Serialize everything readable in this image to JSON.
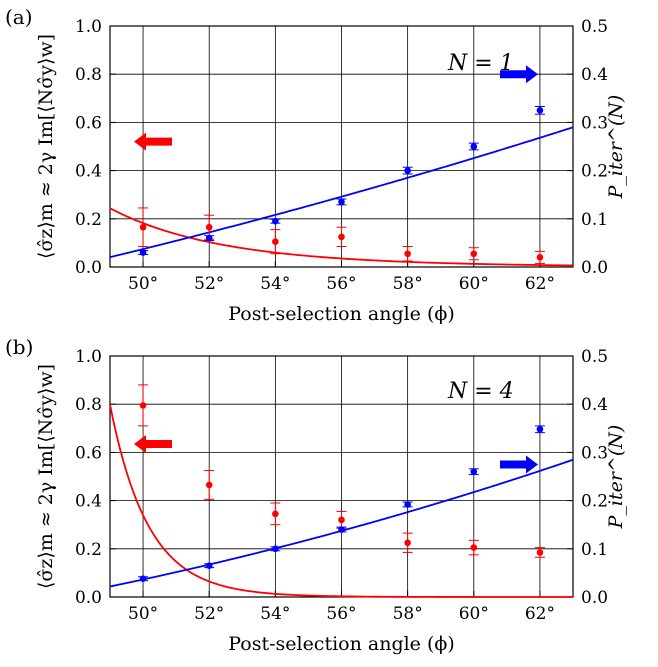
{
  "chart_data": [
    {
      "panel_label": "(a)",
      "annotation": "N = 1",
      "type": "scatter",
      "xlabel": "Post-selection angle (ϕ)",
      "ylabel_left": "⟨σ̂z⟩m ≈ 2γ Im[⟨Nσ̂y⟩w]",
      "ylabel_right": "P_iter^(N)",
      "xlim": [
        49,
        63
      ],
      "ylim_left": [
        0,
        1.0
      ],
      "ylim_right": [
        0,
        0.5
      ],
      "xticks": [
        50,
        52,
        54,
        56,
        58,
        60,
        62
      ],
      "xtick_labels": [
        "50°",
        "52°",
        "54°",
        "56°",
        "58°",
        "60°",
        "62°"
      ],
      "yticks_left": [
        "0.0",
        "0.2",
        "0.4",
        "0.6",
        "0.8",
        "1.0"
      ],
      "yticks_right": [
        "0.0",
        "0.1",
        "0.2",
        "0.3",
        "0.4",
        "0.5"
      ],
      "grid": true,
      "series": [
        {
          "axis": "left",
          "color": "#ff0000",
          "x": [
            50,
            52,
            54,
            56,
            58,
            60,
            62
          ],
          "y": [
            0.165,
            0.165,
            0.105,
            0.125,
            0.055,
            0.055,
            0.04
          ],
          "err": [
            0.08,
            0.05,
            0.05,
            0.04,
            0.03,
            0.025,
            0.025
          ],
          "fit": {
            "form": "power",
            "a": 0.2438,
            "x0": 49,
            "p": -14.47
          }
        },
        {
          "axis": "right",
          "color": "#0000ff",
          "x": [
            50,
            52,
            54,
            56,
            58,
            60,
            62
          ],
          "y": [
            0.03,
            0.06,
            0.095,
            0.135,
            0.2,
            0.25,
            0.325
          ],
          "err": [
            0.004,
            0.005,
            0.004,
            0.006,
            0.007,
            0.007,
            0.008
          ],
          "fit": {
            "form": "poly",
            "coef": [
              0.0204,
              0.0166,
              0.000189
            ],
            "x0": 49
          }
        }
      ],
      "arrows": [
        {
          "direction": "left",
          "color": "#ff0000",
          "y_axis": "left",
          "y": 0.52
        },
        {
          "direction": "right",
          "color": "#0000ff",
          "y_axis": "left",
          "y": 0.8
        }
      ]
    },
    {
      "panel_label": "(b)",
      "annotation": "N = 4",
      "type": "scatter",
      "xlabel": "Post-selection angle (ϕ)",
      "ylabel_left": "⟨σ̂z⟩m ≈ 2γ Im[⟨Nσ̂y⟩w]",
      "ylabel_right": "P_iter^(N)",
      "xlim": [
        49,
        63
      ],
      "ylim_left": [
        0,
        1.0
      ],
      "ylim_right": [
        0,
        0.5
      ],
      "xticks": [
        50,
        52,
        54,
        56,
        58,
        60,
        62
      ],
      "xtick_labels": [
        "50°",
        "52°",
        "54°",
        "56°",
        "58°",
        "60°",
        "62°"
      ],
      "yticks_left": [
        "0.0",
        "0.2",
        "0.4",
        "0.6",
        "0.8",
        "1.0"
      ],
      "yticks_right": [
        "0.0",
        "0.1",
        "0.2",
        "0.3",
        "0.4",
        "0.5"
      ],
      "grid": true,
      "series": [
        {
          "axis": "left",
          "color": "#ff0000",
          "x": [
            50,
            52,
            54,
            56,
            58,
            60,
            62
          ],
          "y": [
            0.795,
            0.465,
            0.345,
            0.32,
            0.225,
            0.205,
            0.185
          ],
          "err": [
            0.085,
            0.06,
            0.045,
            0.035,
            0.04,
            0.03,
            0.02
          ],
          "fit": {
            "form": "power",
            "a": 0.7978,
            "x0": 49,
            "p": -42.33
          }
        },
        {
          "axis": "right",
          "color": "#0000ff",
          "x": [
            50,
            52,
            54,
            56,
            58,
            60,
            62
          ],
          "y": [
            0.038,
            0.065,
            0.1,
            0.14,
            0.192,
            0.26,
            0.348
          ],
          "err": [
            0.004,
            0.004,
            0.004,
            0.005,
            0.005,
            0.006,
            0.007
          ],
          "fit": {
            "form": "poly",
            "coef": [
              0.0218,
              0.0142,
              0.000327
            ],
            "x0": 49
          }
        }
      ],
      "arrows": [
        {
          "direction": "left",
          "color": "#ff0000",
          "y_axis": "left",
          "y": 0.635
        },
        {
          "direction": "right",
          "color": "#0000ff",
          "y_axis": "left",
          "y": 0.55
        }
      ]
    }
  ]
}
